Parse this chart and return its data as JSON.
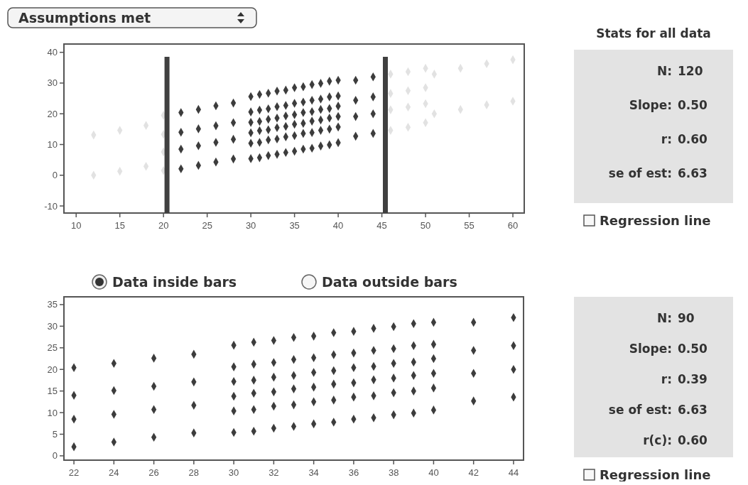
{
  "chart_data": [
    {
      "type": "scatter",
      "annotations": [
        "Assumptions met"
      ],
      "xlim": [
        8.6,
        61.3
      ],
      "ylim": [
        -12.3,
        42.7
      ],
      "xticks": [
        10,
        15,
        20,
        25,
        30,
        35,
        40,
        45,
        50,
        55,
        60
      ],
      "yticks": [
        -10,
        0,
        10,
        20,
        30,
        40
      ],
      "marker": "diamond",
      "ref_lines": [
        {
          "axis": "x",
          "value": 20.4,
          "color": "#404040"
        },
        {
          "axis": "x",
          "value": 45.4,
          "color": "#404040"
        }
      ],
      "series": [
        {
          "color": "#3c3c3c",
          "x": [
            22,
            22,
            22,
            22,
            24,
            24,
            24,
            24,
            26,
            26,
            26,
            26,
            28,
            28,
            28,
            28,
            30,
            30,
            30,
            30,
            30,
            30,
            31,
            31,
            31,
            31,
            31,
            31,
            32,
            32,
            32,
            32,
            32,
            32,
            33,
            33,
            33,
            33,
            33,
            33,
            34,
            34,
            34,
            34,
            34,
            34,
            35,
            35,
            35,
            35,
            35,
            35,
            36,
            36,
            36,
            36,
            36,
            36,
            37,
            37,
            37,
            37,
            37,
            37,
            38,
            38,
            38,
            38,
            38,
            38,
            39,
            39,
            39,
            39,
            39,
            39,
            40,
            40,
            40,
            40,
            40,
            40,
            42,
            42,
            42,
            42,
            44,
            44,
            44,
            44
          ],
          "values": [
            20.4,
            14.0,
            8.5,
            2.1,
            21.4,
            15.1,
            9.6,
            3.2,
            22.6,
            16.1,
            10.7,
            4.3,
            23.5,
            17.1,
            11.7,
            5.3,
            25.6,
            20.6,
            17.2,
            13.8,
            10.4,
            5.4,
            26.3,
            21.2,
            17.5,
            14.5,
            10.7,
            5.7,
            26.7,
            21.6,
            18.2,
            14.8,
            11.5,
            6.4,
            27.4,
            22.3,
            18.6,
            15.5,
            11.8,
            6.8,
            27.7,
            22.7,
            19.3,
            15.9,
            12.5,
            7.4,
            28.5,
            23.4,
            19.7,
            16.6,
            12.9,
            7.8,
            28.8,
            23.8,
            20.4,
            16.9,
            13.6,
            8.5,
            29.5,
            24.4,
            20.7,
            17.6,
            13.9,
            8.8,
            29.9,
            24.8,
            21.4,
            18.0,
            14.6,
            9.5,
            30.6,
            25.5,
            21.7,
            18.6,
            15.0,
            9.9,
            30.9,
            25.8,
            22.5,
            19.1,
            15.7,
            10.6,
            30.9,
            24.4,
            19.1,
            12.7,
            32.0,
            25.5,
            20.0,
            13.6
          ]
        },
        {
          "color": "#e2e2e2",
          "x": [
            12,
            12,
            15,
            15,
            18,
            18,
            20,
            20,
            20,
            20,
            46,
            46,
            46,
            46,
            48,
            48,
            48,
            48,
            50,
            50,
            50,
            50,
            51,
            51,
            54,
            54,
            57,
            57,
            60,
            60
          ],
          "values": [
            13.1,
            0,
            14.6,
            1.3,
            16.2,
            2.9,
            19.5,
            13.3,
            7.6,
            1.5,
            32.9,
            26.6,
            21.3,
            14.6,
            33.7,
            27.5,
            22.2,
            15.6,
            34.8,
            28.5,
            23.3,
            17.1,
            32.9,
            20.0,
            34.8,
            21.4,
            36.3,
            22.9,
            37.6,
            24.1
          ]
        }
      ]
    },
    {
      "type": "other",
      "title": "Stats for all data",
      "annotations": [
        "N:",
        "120",
        "Slope:",
        "0.50",
        "r:",
        "0.60",
        "se of est:",
        "6.63",
        "Regression line"
      ]
    },
    {
      "type": "scatter",
      "annotations": [
        "Data inside bars",
        "Data outside bars"
      ],
      "xlim": [
        21.5,
        44.5
      ],
      "ylim": [
        -1.0,
        36.8
      ],
      "xticks": [
        22,
        24,
        26,
        28,
        30,
        32,
        34,
        36,
        38,
        40,
        42,
        44
      ],
      "yticks": [
        0,
        5,
        10,
        15,
        20,
        25,
        30,
        35
      ],
      "marker": "diamond",
      "series": [
        {
          "color": "#3c3c3c",
          "x": [
            22,
            22,
            22,
            22,
            24,
            24,
            24,
            24,
            26,
            26,
            26,
            26,
            28,
            28,
            28,
            28,
            30,
            30,
            30,
            30,
            30,
            30,
            31,
            31,
            31,
            31,
            31,
            31,
            32,
            32,
            32,
            32,
            32,
            32,
            33,
            33,
            33,
            33,
            33,
            33,
            34,
            34,
            34,
            34,
            34,
            34,
            35,
            35,
            35,
            35,
            35,
            35,
            36,
            36,
            36,
            36,
            36,
            36,
            37,
            37,
            37,
            37,
            37,
            37,
            38,
            38,
            38,
            38,
            38,
            38,
            39,
            39,
            39,
            39,
            39,
            39,
            40,
            40,
            40,
            40,
            40,
            40,
            42,
            42,
            42,
            42,
            44,
            44,
            44,
            44
          ],
          "values": [
            20.4,
            14.0,
            8.5,
            2.1,
            21.4,
            15.1,
            9.6,
            3.2,
            22.6,
            16.1,
            10.7,
            4.3,
            23.5,
            17.1,
            11.7,
            5.3,
            25.6,
            20.6,
            17.2,
            13.8,
            10.4,
            5.4,
            26.3,
            21.2,
            17.5,
            14.5,
            10.7,
            5.7,
            26.7,
            21.6,
            18.2,
            14.8,
            11.5,
            6.4,
            27.4,
            22.3,
            18.6,
            15.5,
            11.8,
            6.8,
            27.7,
            22.7,
            19.3,
            15.9,
            12.5,
            7.4,
            28.5,
            23.4,
            19.7,
            16.6,
            12.9,
            7.8,
            28.8,
            23.8,
            20.4,
            16.9,
            13.6,
            8.5,
            29.5,
            24.4,
            20.7,
            17.6,
            13.9,
            8.8,
            29.9,
            24.8,
            21.4,
            18.0,
            14.6,
            9.5,
            30.6,
            25.5,
            21.7,
            18.6,
            15.0,
            9.9,
            30.9,
            25.8,
            22.5,
            19.1,
            15.7,
            10.6,
            30.9,
            24.4,
            19.1,
            12.7,
            32.0,
            25.5,
            20.0,
            13.6
          ]
        }
      ]
    },
    {
      "type": "other",
      "annotations": [
        "N:",
        "90",
        "Slope:",
        "0.50",
        "r:",
        "0.39",
        "se of est:",
        "6.63",
        "r(c):",
        "0.60",
        "Regression line"
      ]
    }
  ]
}
